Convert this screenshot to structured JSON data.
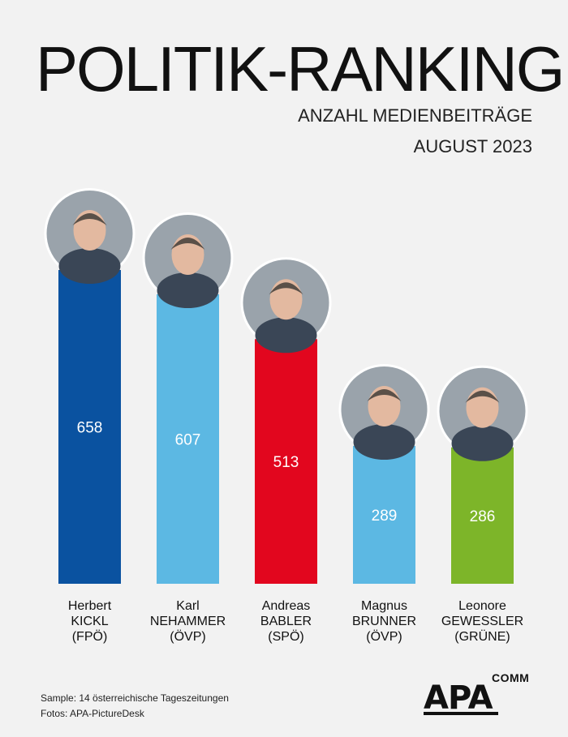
{
  "header": {
    "title": "POLITIK-RANKING",
    "subtitle": "ANZAHL MEDIENBEITRÄGE",
    "date": "AUGUST 2023"
  },
  "chart_data": {
    "type": "bar",
    "title": "POLITIK-RANKING",
    "subtitle": "ANZAHL MEDIENBEITRÄGE — AUGUST 2023",
    "xlabel": "",
    "ylabel": "",
    "ylim": [
      0,
      700
    ],
    "grid": false,
    "categories": [
      "Herbert KICKL (FPÖ)",
      "Karl NEHAMMER (ÖVP)",
      "Andreas BABLER (SPÖ)",
      "Magnus BRUNNER (ÖVP)",
      "Leonore GEWESSLER (GRÜNE)"
    ],
    "values": [
      658,
      607,
      513,
      289,
      286
    ],
    "bars": [
      {
        "name_lines": [
          "Herbert",
          "KICKL",
          "(FPÖ)"
        ],
        "value": 658,
        "color": "#0a52a0",
        "photo": "portrait-photo"
      },
      {
        "name_lines": [
          "Karl",
          "NEHAMMER",
          "(ÖVP)"
        ],
        "value": 607,
        "color": "#5cb8e3",
        "photo": "portrait-photo"
      },
      {
        "name_lines": [
          "Andreas",
          "BABLER",
          "(SPÖ)"
        ],
        "value": 513,
        "color": "#e2061e",
        "photo": "portrait-photo"
      },
      {
        "name_lines": [
          "Magnus",
          "BRUNNER",
          "(ÖVP)"
        ],
        "value": 289,
        "color": "#5cb8e3",
        "photo": "portrait-photo"
      },
      {
        "name_lines": [
          "Leonore",
          "GEWESSLER",
          "(GRÜNE)"
        ],
        "value": 286,
        "color": "#7db529",
        "photo": "portrait-photo"
      }
    ]
  },
  "footer": {
    "sample": "Sample: 14 österreichische Tageszeitungen",
    "photos": "Fotos: APA-PictureDesk"
  },
  "logo": {
    "main": "APA",
    "sub": "COMM"
  }
}
